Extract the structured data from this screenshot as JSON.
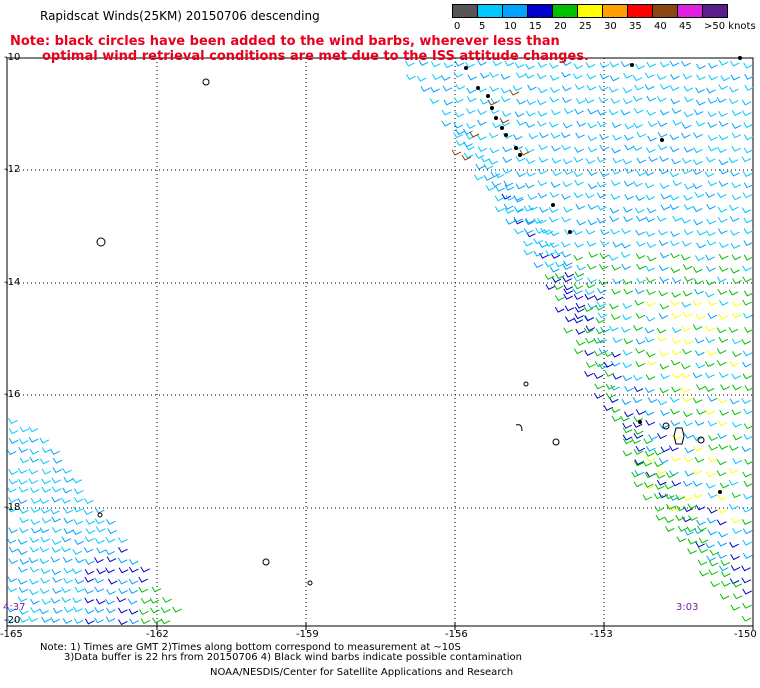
{
  "title": "Rapidscat Winds(25KM) 20150706 descending",
  "note_line1": "Note: black circles have been added to the wind barbs, wherever less than",
  "note_line2": "optimal wind retrieval conditions are met due to the ISS attitude changes.",
  "legend": {
    "ticks": [
      "0",
      "5",
      "10",
      "15",
      "20",
      "25",
      "30",
      "35",
      "40",
      "45",
      ">50 knots"
    ],
    "colors": [
      "#555555",
      "#00c8ff",
      "#00a2ff",
      "#0000cc",
      "#00c000",
      "#ffff00",
      "#ffa000",
      "#ff0000",
      "#8b4513",
      "#e020e0",
      "#5a1e8c"
    ]
  },
  "lat_labels": [
    "-10",
    "-12",
    "-14",
    "-16",
    "-18",
    "-20"
  ],
  "lon_labels": [
    "-165",
    "-162",
    "-159",
    "-156",
    "-153",
    "-150"
  ],
  "time_left": "4:37",
  "time_right": "3:03",
  "footer": {
    "line1": "Note: 1) Times are GMT 2)Times along bottom correspond to measurement at ~10S",
    "line2": "3)Data buffer is 22 hrs from 20150706 4) Black wind barbs indicate possible contamination",
    "line3": "NOAA/NESDIS/Center for Satellite Applications and Research"
  }
}
